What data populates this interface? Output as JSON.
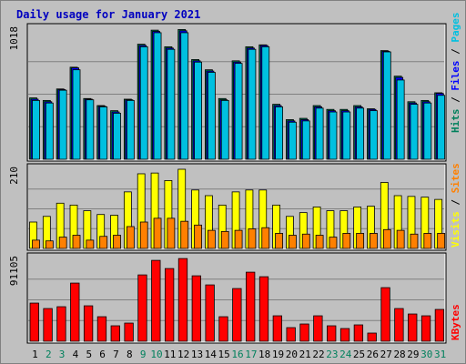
{
  "title": "Daily usage for January 2021",
  "colors": {
    "background": "#c0c0c0",
    "plot_bg": "#c0c0c0",
    "hits": "#00805c",
    "files": "#0000ff",
    "pages": "#00c0e0",
    "visits": "#ffff00",
    "sites": "#ff8000",
    "kbytes": "#ff0000",
    "title": "#0000c0",
    "weekend_label": "#00805c",
    "weekday_label": "#000000"
  },
  "chart_data": [
    {
      "type": "bar",
      "panel": "top",
      "ymax_label": "1018",
      "ylim": [
        0,
        1018
      ],
      "legend": [
        {
          "text": "Hits",
          "color_key": "hits"
        },
        {
          "text": "Files",
          "color_key": "files"
        },
        {
          "text": "Pages",
          "color_key": "pages"
        }
      ],
      "categories": [
        "1",
        "2",
        "3",
        "4",
        "5",
        "6",
        "7",
        "8",
        "9",
        "10",
        "11",
        "12",
        "13",
        "14",
        "15",
        "16",
        "17",
        "18",
        "19",
        "20",
        "21",
        "22",
        "23",
        "24",
        "25",
        "26",
        "27",
        "28",
        "29",
        "30",
        "31"
      ],
      "weekend_days": [
        "2",
        "3",
        "9",
        "10",
        "16",
        "17",
        "23",
        "24",
        "30",
        "31"
      ],
      "series": [
        {
          "name": "Hits",
          "values": [
            480,
            460,
            550,
            720,
            475,
            420,
            380,
            470,
            900,
            1010,
            880,
            1015,
            780,
            700,
            475,
            770,
            880,
            895,
            430,
            310,
            320,
            420,
            390,
            390,
            420,
            395,
            850,
            650,
            450,
            460,
            520
          ]
        },
        {
          "name": "Files",
          "values": [
            470,
            450,
            545,
            715,
            470,
            415,
            370,
            465,
            890,
            1000,
            870,
            1005,
            770,
            690,
            465,
            760,
            870,
            890,
            420,
            300,
            310,
            410,
            380,
            380,
            410,
            390,
            845,
            640,
            440,
            450,
            515
          ]
        },
        {
          "name": "Pages",
          "values": [
            460,
            440,
            540,
            700,
            465,
            410,
            360,
            460,
            880,
            990,
            860,
            990,
            760,
            680,
            460,
            750,
            860,
            880,
            410,
            290,
            300,
            400,
            370,
            370,
            400,
            380,
            840,
            620,
            430,
            440,
            500
          ]
        }
      ]
    },
    {
      "type": "bar",
      "panel": "middle",
      "ymax_label": "210",
      "ylim": [
        0,
        210
      ],
      "legend": [
        {
          "text": "Visits",
          "color_key": "visits"
        },
        {
          "text": "Sites",
          "color_key": "sites"
        }
      ],
      "categories": [
        "1",
        "2",
        "3",
        "4",
        "5",
        "6",
        "7",
        "8",
        "9",
        "10",
        "11",
        "12",
        "13",
        "14",
        "15",
        "16",
        "17",
        "18",
        "19",
        "20",
        "21",
        "22",
        "23",
        "24",
        "25",
        "26",
        "27",
        "28",
        "29",
        "30",
        "31"
      ],
      "series": [
        {
          "name": "Visits",
          "values": [
            70,
            85,
            120,
            115,
            100,
            90,
            88,
            150,
            198,
            200,
            180,
            210,
            155,
            140,
            115,
            150,
            155,
            155,
            115,
            85,
            95,
            110,
            100,
            100,
            110,
            112,
            175,
            140,
            138,
            136,
            130
          ]
        },
        {
          "name": "Sites",
          "values": [
            22,
            20,
            30,
            35,
            22,
            32,
            35,
            58,
            70,
            80,
            80,
            72,
            62,
            48,
            45,
            48,
            52,
            55,
            40,
            35,
            38,
            35,
            30,
            40,
            40,
            40,
            50,
            48,
            38,
            40,
            40
          ]
        }
      ]
    },
    {
      "type": "bar",
      "panel": "bottom",
      "ymax_label": "91105",
      "ylim": [
        0,
        91105
      ],
      "legend": [
        {
          "text": "KBytes",
          "color_key": "kbytes"
        }
      ],
      "categories": [
        "1",
        "2",
        "3",
        "4",
        "5",
        "6",
        "7",
        "8",
        "9",
        "10",
        "11",
        "12",
        "13",
        "14",
        "15",
        "16",
        "17",
        "18",
        "19",
        "20",
        "21",
        "22",
        "23",
        "24",
        "25",
        "26",
        "27",
        "28",
        "29",
        "30",
        "31"
      ],
      "series": [
        {
          "name": "KBytes",
          "values": [
            42000,
            36000,
            38000,
            64000,
            39000,
            27000,
            17000,
            20000,
            73000,
            89000,
            80000,
            91000,
            72000,
            62000,
            27000,
            58000,
            76000,
            71000,
            28000,
            15000,
            19000,
            28000,
            17000,
            14000,
            18000,
            9000,
            59000,
            36000,
            30000,
            28000,
            35000
          ]
        }
      ]
    }
  ]
}
